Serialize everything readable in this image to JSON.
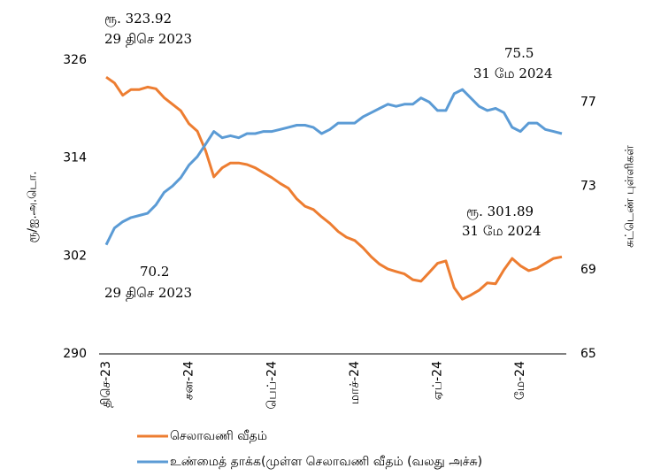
{
  "chart_data": {
    "type": "line",
    "ylabel": "ரூ/ஐ.அ.டொ.",
    "y2label": "சுட்டெண் புள்ளிகள்",
    "categories": [
      "திசெ-23",
      null,
      null,
      null,
      null,
      null,
      null,
      null,
      null,
      null,
      "சன-24",
      null,
      null,
      null,
      null,
      null,
      null,
      null,
      null,
      null,
      "பெப்-24",
      null,
      null,
      null,
      null,
      null,
      null,
      null,
      null,
      null,
      "மாச்-24",
      null,
      null,
      null,
      null,
      null,
      null,
      null,
      null,
      null,
      "ஏப்-24",
      null,
      null,
      null,
      null,
      null,
      null,
      null,
      null,
      null,
      "மே-24",
      null,
      null,
      null,
      null,
      null
    ],
    "series": [
      {
        "name": "செலாவணி வீதம்",
        "color": "#ED7D31",
        "axis": "y",
        "values": [
          323.92,
          323.2,
          321.7,
          322.4,
          322.4,
          322.7,
          322.5,
          321.4,
          320.6,
          319.8,
          318.2,
          317.3,
          314.9,
          311.7,
          312.8,
          313.4,
          313.4,
          313.2,
          312.8,
          312.2,
          311.6,
          310.9,
          310.3,
          309.0,
          308.1,
          307.7,
          306.8,
          306.0,
          305.0,
          304.3,
          303.9,
          303.0,
          301.9,
          301.0,
          300.4,
          300.1,
          299.8,
          299.1,
          298.9,
          300.0,
          301.1,
          301.4,
          298.1,
          296.7,
          297.2,
          297.8,
          298.7,
          298.6,
          300.3,
          301.7,
          300.8,
          300.2,
          300.5,
          301.1,
          301.7,
          301.89
        ]
      },
      {
        "name": "உண்மைத் தாக்க(முள்ள செலாவணி வீதம் (வலது அச்சு)",
        "color": "#5B9BD5",
        "axis": "y2",
        "values": [
          70.2,
          71.0,
          71.3,
          71.5,
          71.6,
          71.7,
          72.1,
          72.7,
          73.0,
          73.4,
          74.0,
          74.4,
          75.0,
          75.6,
          75.3,
          75.4,
          75.3,
          75.5,
          75.5,
          75.6,
          75.6,
          75.7,
          75.8,
          75.9,
          75.9,
          75.8,
          75.5,
          75.7,
          76.0,
          76.0,
          76.0,
          76.3,
          76.5,
          76.7,
          76.9,
          76.8,
          76.9,
          76.9,
          77.2,
          77.0,
          76.6,
          76.6,
          77.4,
          77.6,
          77.2,
          76.8,
          76.6,
          76.7,
          76.5,
          75.8,
          75.6,
          76.0,
          76.0,
          75.7,
          75.6,
          75.5
        ]
      }
    ],
    "ylim": [
      290,
      326
    ],
    "yticks": [
      290,
      302,
      314,
      326
    ],
    "y2lim": [
      65,
      79
    ],
    "y2ticks": [
      65,
      69,
      73,
      77
    ],
    "annotations": [
      {
        "lines": [
          "ரூ.  323.92",
          "29  திசெ  2023"
        ]
      },
      {
        "lines": [
          "75.5",
          "31  மே  2024"
        ]
      },
      {
        "lines": [
          "ரூ.  301.89",
          "31  மே  2024"
        ]
      },
      {
        "lines": [
          "70.2",
          "29  திசெ  2023"
        ]
      }
    ]
  }
}
